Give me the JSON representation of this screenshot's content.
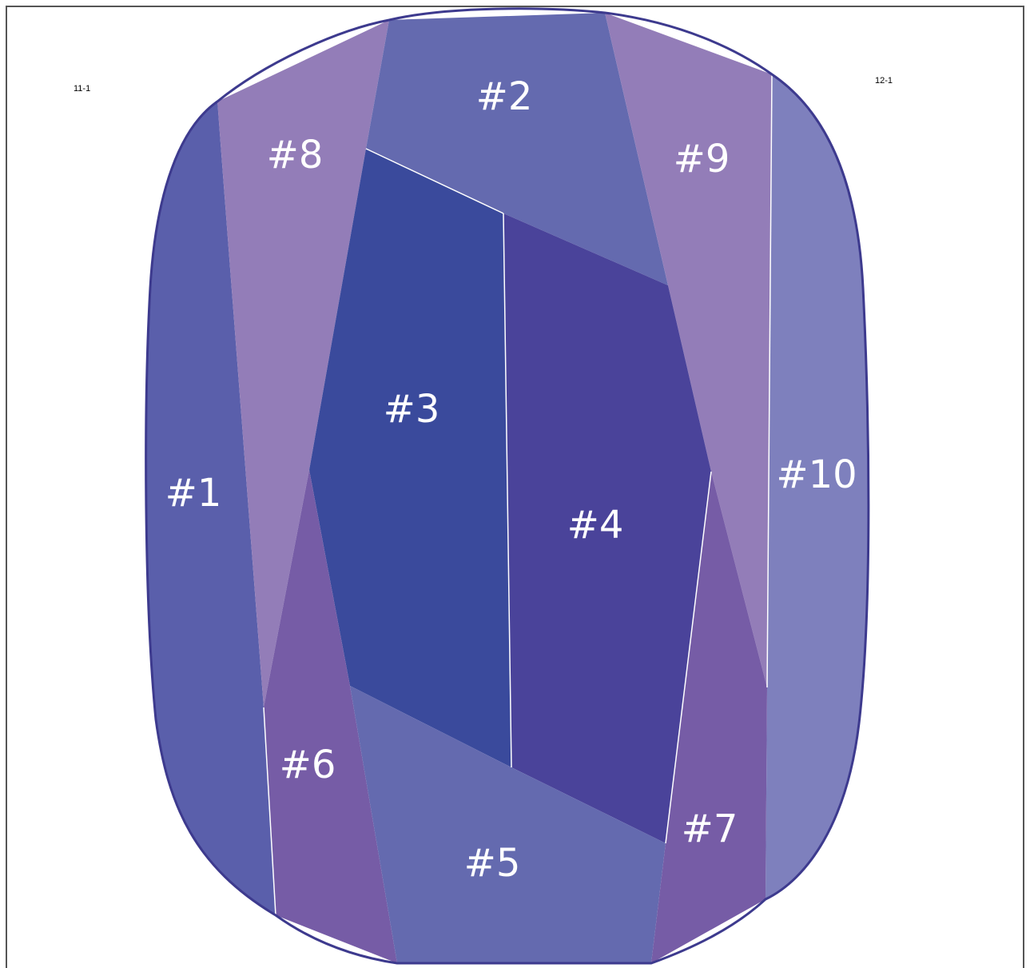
{
  "corner_labels": {
    "top_left": "11-1",
    "top_right": "12-1"
  },
  "pieces": [
    {
      "label": "#1",
      "color": "#5a5fab"
    },
    {
      "label": "#2",
      "color": "#646aaf"
    },
    {
      "label": "#3",
      "color": "#3a4a9c"
    },
    {
      "label": "#4",
      "color": "#4a439a"
    },
    {
      "label": "#5",
      "color": "#646aaf"
    },
    {
      "label": "#6",
      "color": "#765ca6"
    },
    {
      "label": "#7",
      "color": "#765ca6"
    },
    {
      "label": "#8",
      "color": "#937db8"
    },
    {
      "label": "#9",
      "color": "#937db8"
    },
    {
      "label": "#10",
      "color": "#7e80bd"
    }
  ],
  "outline_color": "#3d3a8e"
}
